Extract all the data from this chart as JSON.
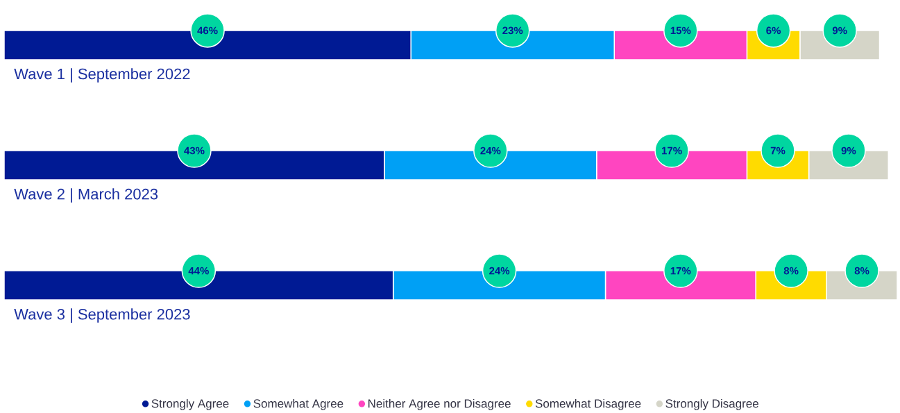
{
  "chart_data": {
    "type": "bar",
    "orientation": "horizontal",
    "stacked": true,
    "categories": [
      "Wave 1 | September 2022",
      "Wave 2 | March 2023",
      "Wave 3 | September 2023"
    ],
    "series": [
      {
        "name": "Strongly Agree",
        "color": "#001a94",
        "values": [
          46,
          43,
          44
        ],
        "value_labels": [
          "46%",
          "43%",
          "44%"
        ]
      },
      {
        "name": "Somewhat Agree",
        "color": "#00a0f5",
        "values": [
          23,
          24,
          24
        ],
        "value_labels": [
          "23%",
          "24%",
          "24%"
        ]
      },
      {
        "name": "Neither Agree nor Disagree",
        "color": "#ff45c0",
        "values": [
          15,
          17,
          17
        ],
        "value_labels": [
          "15%",
          "17%",
          "17%"
        ]
      },
      {
        "name": "Somewhat Disagree",
        "color": "#ffdb00",
        "values": [
          6,
          7,
          8
        ],
        "value_labels": [
          "6%",
          "7%",
          "8%"
        ]
      },
      {
        "name": "Strongly Disagree",
        "color": "#d5d5c8",
        "values": [
          9,
          9,
          8
        ],
        "value_labels": [
          "9%",
          "9%",
          "8%"
        ]
      }
    ],
    "xlim": [
      0,
      101
    ],
    "legend": "bottom"
  }
}
